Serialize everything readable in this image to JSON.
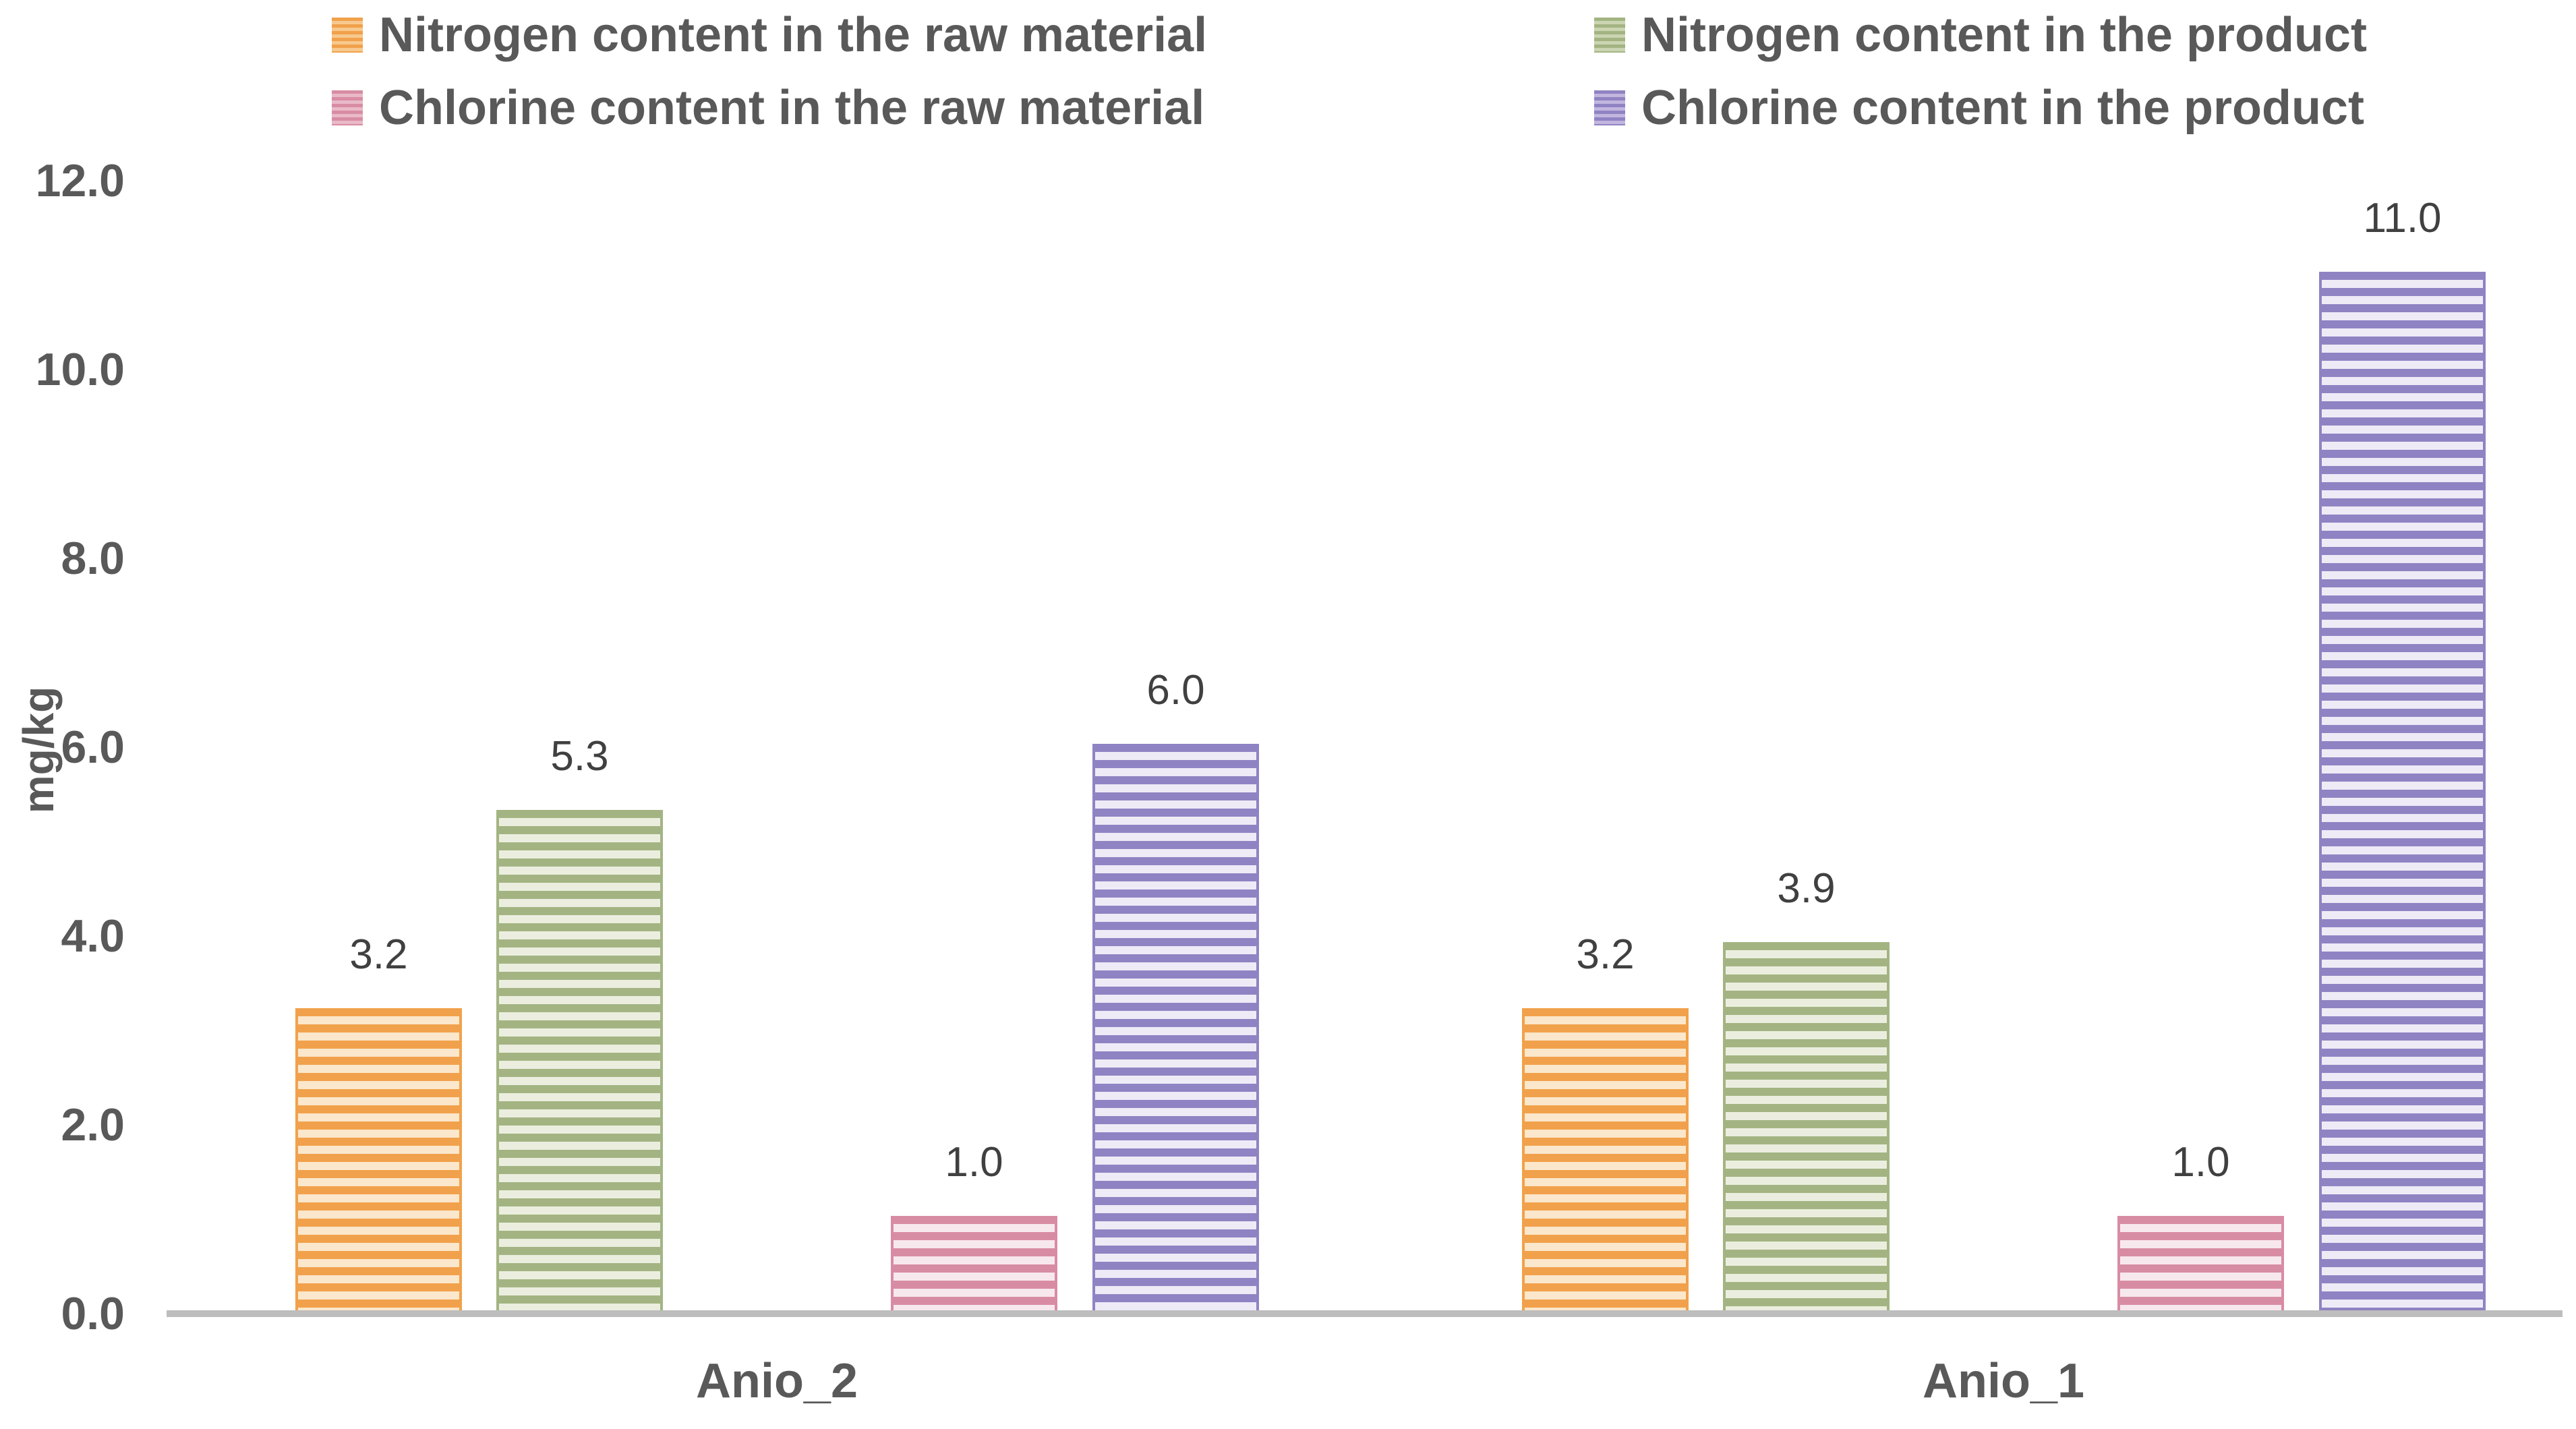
{
  "chart_data": {
    "type": "bar",
    "title": "",
    "categories": [
      "Anio_2",
      "Anio_1"
    ],
    "series": [
      {
        "name": "Nitrogen content in the raw material",
        "values": [
          3.2,
          3.2
        ],
        "labels": [
          "3.2",
          "3.2"
        ],
        "color": "#F1A14B",
        "color_light": "#FBE7CC",
        "marker_light": "#F7C98E"
      },
      {
        "name": "Nitrogen content in the product",
        "values": [
          5.3,
          3.9
        ],
        "labels": [
          "5.3",
          "3.9"
        ],
        "color": "#A3B482",
        "color_light": "#EBEEDF",
        "marker_light": "#CBD5B2"
      },
      {
        "name": "Chlorine content in the raw material",
        "values": [
          1.0,
          1.0
        ],
        "labels": [
          "1.0",
          "1.0"
        ],
        "color": "#D88CA4",
        "color_light": "#F7E8ED",
        "marker_light": "#E9B9C8"
      },
      {
        "name": "Chlorine content in the product",
        "values": [
          6.0,
          11.0
        ],
        "labels": [
          "6.0",
          "11.0"
        ],
        "color": "#9083C3",
        "color_light": "#EEEBF7",
        "marker_light": "#C2B6DF"
      }
    ],
    "ylabel": "mg/kg",
    "xlabel": "",
    "ylim": [
      0,
      12
    ],
    "ytick_labels": [
      "0.0",
      "2.0",
      "4.0",
      "6.0",
      "8.0",
      "10.0",
      "12.0"
    ],
    "grid": false,
    "legend_position": "top",
    "axis_line_color": "#BDBDBD",
    "axis_text_color": "#595959",
    "data_label_color": "#404040",
    "background_color": "#FFFFFF"
  }
}
